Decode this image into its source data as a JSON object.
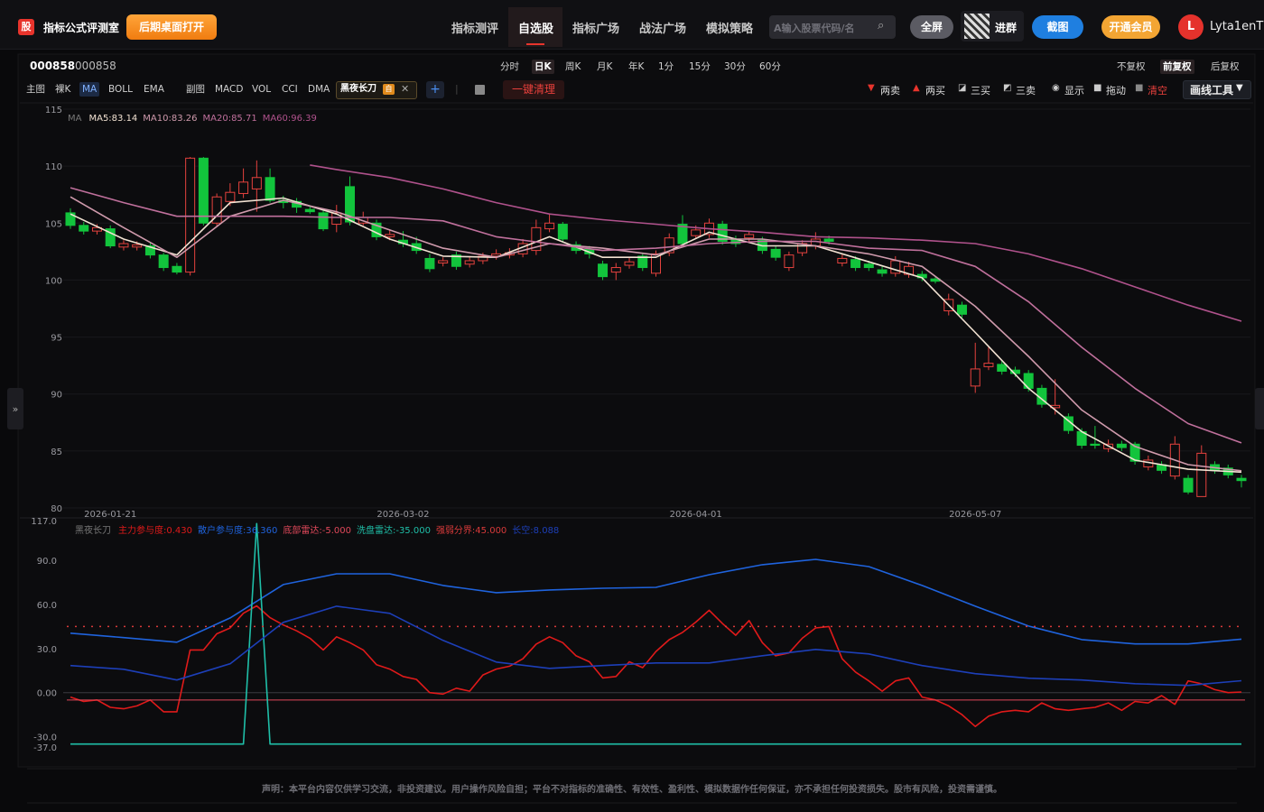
{
  "header": {
    "logo": "股",
    "title": "指标公式评测室",
    "desktop_button": "后期桌面打开",
    "nav": [
      "指标测评",
      "自选股",
      "指标广场",
      "战法广场",
      "模拟策略"
    ],
    "search_placeholder": "A输入股票代码/名",
    "fullscreen": "全屏",
    "join_group": "进群",
    "screenshot": "截图",
    "vip": "开通会员",
    "avatar": "L",
    "username": "Lyta1enT"
  },
  "toolbar": {
    "code": "000858",
    "name": "000858",
    "periods": [
      "分时",
      "日K",
      "周K",
      "月K",
      "年K",
      "1分",
      "15分",
      "30分",
      "60分"
    ],
    "adjust": [
      "不复权",
      "前复权",
      "后复权"
    ],
    "main_indicators": [
      "主图",
      "裸K",
      "MA",
      "BOLL",
      "EMA"
    ],
    "sub_indicators": [
      "副图",
      "MACD",
      "VOL",
      "CCI",
      "DMA"
    ],
    "custom_indicator": "黑夜长刀",
    "custom_tag": "自",
    "clear_all": "一键清理",
    "draw_tools": [
      "两卖",
      "两买",
      "三买",
      "三卖",
      "显示",
      "拖动",
      "清空"
    ],
    "draw_menu": "画线工具"
  },
  "chart_data": [
    {
      "type": "candlestick",
      "title": "MA",
      "categories": [
        null,
        null,
        null,
        "2026-01-21",
        null,
        null,
        null,
        null,
        null,
        null,
        null,
        null,
        null,
        null,
        null,
        null,
        null,
        null,
        null,
        null,
        null,
        null,
        null,
        null,
        null,
        "2026-03-02",
        null,
        null,
        null,
        null,
        null,
        null,
        null,
        null,
        null,
        null,
        null,
        null,
        null,
        null,
        null,
        null,
        null,
        null,
        null,
        null,
        null,
        "2026-04-01",
        null,
        null,
        null,
        null,
        null,
        null,
        null,
        null,
        null,
        null,
        null,
        null,
        null,
        null,
        null,
        null,
        null,
        null,
        null,
        null,
        "2026-05-07",
        null,
        null,
        null,
        null,
        null,
        null,
        null,
        null,
        null,
        null,
        null,
        null,
        null,
        null,
        null,
        null,
        null,
        null,
        null,
        null
      ],
      "open": [
        105.9,
        104.8,
        104.3,
        104.5,
        102.9,
        102.9,
        103.0,
        102.2,
        101.2,
        100.7,
        110.7,
        105.0,
        106.9,
        107.6,
        108.0,
        109.0,
        107.0,
        106.9,
        106.2,
        105.9,
        104.9,
        108.2,
        105.0,
        105.0,
        103.8,
        103.5,
        103.2,
        101.9,
        101.5,
        102.2,
        101.4,
        101.7,
        102.1,
        102.2,
        102.3,
        102.6,
        104.5,
        104.9,
        103.1,
        102.7,
        101.4,
        100.7,
        101.3,
        102.1,
        100.6,
        102.4,
        104.9,
        103.9,
        104.0,
        104.9,
        103.6,
        103.7,
        103.5,
        102.7,
        101.1,
        102.4,
        103.0,
        103.6,
        101.5,
        101.8,
        101.4,
        100.9,
        100.6,
        100.5,
        100.5,
        100.1,
        97.3,
        97.8,
        90.7,
        92.4,
        92.6,
        92.1,
        91.8,
        90.5,
        88.8,
        88.0,
        86.7,
        85.6,
        85.2,
        85.6,
        85.6,
        83.6,
        83.8,
        82.8,
        82.6,
        81.0,
        83.8,
        83.5,
        82.6
      ],
      "high": [
        106.3,
        105.1,
        104.9,
        104.8,
        103.5,
        103.4,
        103.3,
        102.4,
        101.5,
        110.8,
        110.8,
        107.6,
        108.5,
        109.8,
        110.5,
        109.8,
        107.4,
        107.2,
        106.5,
        106.2,
        106.6,
        109.1,
        106.0,
        105.3,
        104.4,
        104.3,
        103.8,
        102.3,
        102.0,
        102.5,
        102.0,
        102.4,
        102.7,
        102.8,
        103.6,
        105.3,
        105.8,
        105.1,
        103.4,
        103.0,
        101.7,
        101.5,
        102.0,
        102.4,
        102.6,
        104.1,
        105.7,
        104.8,
        105.4,
        105.2,
        103.9,
        104.3,
        103.8,
        103.0,
        102.5,
        103.5,
        104.2,
        103.9,
        102.3,
        102.1,
        101.7,
        101.2,
        102.1,
        101.6,
        100.8,
        100.3,
        98.8,
        98.1,
        94.5,
        94.2,
        92.9,
        92.4,
        92.1,
        90.8,
        91.3,
        88.3,
        87.0,
        87.2,
        86.0,
        85.9,
        85.8,
        84.6,
        84.1,
        86.3,
        82.9,
        85.5,
        84.1,
        83.8,
        82.9
      ],
      "low": [
        104.5,
        104.0,
        104.0,
        102.8,
        102.6,
        102.6,
        101.9,
        100.8,
        100.5,
        100.4,
        104.8,
        104.7,
        106.5,
        107.2,
        106.0,
        106.8,
        106.3,
        105.9,
        105.8,
        104.3,
        104.2,
        104.8,
        104.8,
        103.5,
        103.5,
        102.9,
        102.3,
        100.7,
        101.2,
        100.9,
        101.1,
        101.4,
        101.8,
        101.9,
        102.0,
        102.2,
        104.2,
        103.3,
        102.3,
        101.9,
        100.0,
        100.0,
        101.0,
        100.8,
        100.3,
        102.1,
        102.9,
        103.6,
        103.7,
        103.1,
        102.9,
        103.4,
        102.3,
        101.7,
        100.8,
        102.1,
        102.7,
        103.1,
        101.2,
        100.8,
        100.8,
        100.3,
        100.3,
        100.2,
        99.9,
        99.7,
        96.9,
        96.7,
        90.1,
        92.1,
        91.7,
        91.5,
        90.2,
        88.8,
        88.2,
        86.5,
        85.2,
        85.2,
        84.9,
        85.0,
        83.8,
        83.3,
        83.0,
        82.5,
        81.2,
        81.0,
        83.0,
        82.6,
        81.8
      ],
      "close": [
        104.8,
        104.3,
        104.6,
        103.0,
        103.2,
        103.1,
        102.2,
        101.1,
        100.7,
        110.7,
        105.0,
        107.3,
        107.7,
        108.6,
        109.0,
        107.0,
        106.8,
        106.4,
        106.0,
        104.5,
        105.9,
        105.1,
        105.5,
        103.8,
        104.0,
        103.2,
        102.6,
        101.0,
        101.7,
        101.2,
        101.7,
        102.1,
        102.3,
        102.4,
        103.2,
        104.6,
        105.0,
        103.6,
        102.6,
        102.3,
        100.3,
        101.1,
        101.6,
        101.1,
        102.3,
        103.7,
        103.2,
        104.4,
        105.0,
        103.4,
        103.2,
        104.0,
        102.6,
        102.0,
        102.2,
        103.2,
        103.6,
        103.4,
        101.9,
        101.1,
        101.1,
        100.6,
        101.7,
        101.2,
        100.2,
        99.9,
        98.3,
        97.0,
        92.2,
        92.7,
        92.0,
        91.8,
        90.5,
        89.1,
        89.0,
        86.8,
        85.5,
        85.5,
        85.6,
        85.3,
        84.1,
        84.2,
        83.3,
        85.6,
        81.4,
        84.8,
        83.3,
        82.9,
        82.4
      ],
      "up_color": "#e5423e",
      "down_color": "#12c43c",
      "ylim": [
        80,
        115
      ],
      "yticks": [
        115,
        110,
        105,
        100,
        95,
        90,
        85,
        80
      ],
      "grid": true,
      "series": [
        {
          "name": "MA5:83.14",
          "color": "#f2e2d2",
          "x": [
            0,
            4,
            8,
            12,
            16,
            20,
            24,
            28,
            32,
            36,
            40,
            44,
            48,
            52,
            56,
            60,
            64,
            68,
            72,
            76,
            80,
            84,
            88
          ],
          "values": [
            105.8,
            103.6,
            102.2,
            106.8,
            107.2,
            105.8,
            103.6,
            102.1,
            102.0,
            103.8,
            102.0,
            102.0,
            104.2,
            103.0,
            103.0,
            101.6,
            100.2,
            95.4,
            90.5,
            86.7,
            84.2,
            83.4,
            83.14
          ]
        },
        {
          "name": "MA10:83.26",
          "color": "#cf9aac",
          "x": [
            0,
            4,
            8,
            12,
            16,
            20,
            24,
            28,
            32,
            36,
            40,
            44,
            48,
            52,
            56,
            60,
            64,
            68,
            72,
            76,
            80,
            84,
            88
          ],
          "values": [
            107.3,
            104.6,
            102.0,
            105.6,
            107.0,
            106.0,
            104.4,
            102.8,
            102.0,
            103.2,
            102.8,
            102.2,
            103.6,
            103.6,
            103.0,
            102.3,
            101.2,
            97.7,
            93.3,
            88.6,
            85.4,
            83.8,
            83.26
          ]
        },
        {
          "name": "MA20:85.71",
          "color": "#c0709c",
          "x": [
            0,
            4,
            8,
            12,
            16,
            20,
            24,
            28,
            32,
            36,
            40,
            44,
            48,
            52,
            56,
            60,
            64,
            68,
            72,
            76,
            80,
            84,
            88
          ],
          "values": [
            108.1,
            106.8,
            105.6,
            105.6,
            105.6,
            105.5,
            105.5,
            105.2,
            103.8,
            103.2,
            102.6,
            102.8,
            103.2,
            103.4,
            103.4,
            102.8,
            102.6,
            101.2,
            98.1,
            94.1,
            90.5,
            87.4,
            85.71
          ]
        },
        {
          "name": "MA60:96.39",
          "color": "#b0528c",
          "x": [
            18,
            20,
            24,
            28,
            32,
            36,
            40,
            44,
            48,
            52,
            56,
            60,
            64,
            68,
            72,
            76,
            80,
            84,
            88
          ],
          "values": [
            110.1,
            109.7,
            109.0,
            108.0,
            106.8,
            105.8,
            105.3,
            104.9,
            104.5,
            104.2,
            103.8,
            103.7,
            103.5,
            103.2,
            102.3,
            101.0,
            99.4,
            97.8,
            96.39
          ]
        }
      ]
    },
    {
      "type": "line",
      "title": "黑夜长刀",
      "ylim": [
        -37,
        117
      ],
      "yticks": [
        {
          "value": 117,
          "label": "117.0"
        },
        {
          "value": 90,
          "label": "90.0"
        },
        {
          "value": 60,
          "label": "60.0"
        },
        {
          "value": 30,
          "label": "30.0"
        },
        {
          "value": 0,
          "label": "0.00"
        },
        {
          "value": -30,
          "label": "-30.0"
        },
        {
          "value": -37,
          "label": "-37.0"
        }
      ],
      "grid": false,
      "series": [
        {
          "name": "主力参与度:0.430",
          "color": "#e01a1a",
          "values": [
            -3,
            -6,
            -5,
            -10,
            -11,
            -9,
            -5,
            -13,
            -13,
            29,
            29,
            40,
            44,
            54,
            59,
            51,
            46,
            42,
            37,
            29,
            38,
            34,
            29,
            19,
            16,
            11,
            9,
            0,
            -1,
            3,
            1,
            12,
            16,
            18,
            23,
            33,
            38,
            34,
            25,
            21,
            10,
            11,
            21,
            17,
            28,
            36,
            41,
            48,
            56,
            47,
            39,
            49,
            34,
            25,
            27,
            37,
            44,
            45,
            23,
            14,
            8,
            1,
            8,
            10,
            -3,
            -5,
            -9,
            -15,
            -23,
            -16,
            -13,
            -12,
            -13,
            -7,
            -11,
            -12,
            -11,
            -10,
            -7,
            -12,
            -6,
            -7,
            -2,
            -8,
            8,
            6,
            2,
            0,
            0.43
          ]
        },
        {
          "name": "散户参与度:36.360",
          "color": "#1f63dd",
          "x": [
            0,
            4,
            8,
            12,
            16,
            20,
            24,
            28,
            32,
            36,
            40,
            44,
            48,
            52,
            56,
            60,
            64,
            68,
            72,
            76,
            80,
            84,
            88
          ],
          "values": [
            40.4,
            37.4,
            34.3,
            50.8,
            73.5,
            80.8,
            80.8,
            72.9,
            68.0,
            69.8,
            71.0,
            71.6,
            80.2,
            87.0,
            90.6,
            85.7,
            72.9,
            58.8,
            45.3,
            36.1,
            33.1,
            33.1,
            36.36
          ]
        },
        {
          "name": "底部雷达:-5.000",
          "color": "#e0485a",
          "value": -5
        },
        {
          "name": "洗盘雷达:-35.000",
          "color": "#1fbfa8",
          "values": [
            -35,
            -35,
            -35,
            -35,
            -35,
            -35,
            -35,
            -35,
            -35,
            -35,
            -35,
            -35,
            -35,
            -35,
            115,
            -35,
            -35,
            -35,
            -35,
            -35,
            -35,
            -35,
            -35,
            -35,
            -35,
            -35,
            -35,
            -35,
            -35,
            -35,
            -35,
            -35,
            -35,
            -35,
            -35,
            -35,
            -35,
            -35,
            -35,
            -35,
            -35,
            -35,
            -35,
            -35,
            -35,
            -35,
            -35,
            -35,
            -35,
            -35,
            -35,
            -35,
            -35,
            -35,
            -35,
            -35,
            -35,
            -35,
            -35,
            -35,
            -35,
            -35,
            -35,
            -35,
            -35,
            -35,
            -35,
            -35,
            -35,
            -35,
            -35,
            -35,
            -35,
            -35,
            -35,
            -35,
            -35,
            -35,
            -35,
            -35,
            -35,
            -35,
            -35,
            -35,
            -35,
            -35,
            -35,
            -35,
            -35
          ]
        },
        {
          "name": "强弱分界:45.000",
          "color": "#d83a3a",
          "value": 45,
          "style": "dotted"
        },
        {
          "name": "长空:8.088",
          "color": "#1d3fb8",
          "x": [
            0,
            4,
            8,
            12,
            16,
            20,
            24,
            28,
            32,
            36,
            40,
            44,
            48,
            52,
            56,
            60,
            64,
            68,
            72,
            76,
            80,
            84,
            88
          ],
          "values": [
            18.4,
            15.9,
            8.6,
            19.6,
            47.8,
            58.8,
            53.9,
            35.5,
            20.8,
            16.5,
            18.4,
            20.2,
            20.2,
            25.1,
            29.4,
            26.3,
            18.4,
            12.9,
            9.8,
            8.6,
            6.1,
            4.9,
            8.088
          ]
        }
      ]
    }
  ],
  "footer": {
    "disclaimer": "声明：本平台内容仅供学习交流，非投资建议。用户操作风险自担；平台不对指标的准确性、有效性、盈利性、模拟数据作任何保证，亦不承担任何投资损失。股市有风险，投资需谨慎。"
  }
}
